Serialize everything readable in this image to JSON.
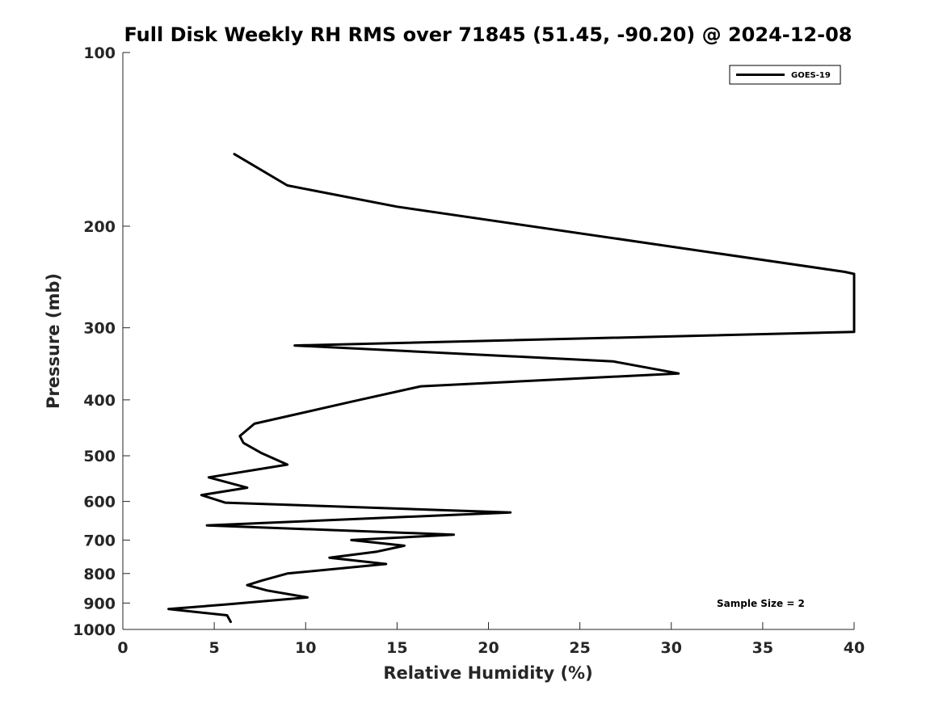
{
  "chart_data": {
    "type": "line",
    "title": "Full Disk Weekly RH RMS over 71845 (51.45, -90.20) @ 2024-12-08",
    "xlabel": "Relative Humidity (%)",
    "ylabel": "Pressure (mb)",
    "xlim": [
      0,
      40
    ],
    "ylim": [
      100,
      1000
    ],
    "yscale": "log",
    "yreversed": true,
    "xticks": [
      0,
      5,
      10,
      15,
      20,
      25,
      30,
      35,
      40
    ],
    "yticks": [
      100,
      200,
      300,
      400,
      500,
      600,
      700,
      800,
      900,
      1000
    ],
    "legend_position": "top-right",
    "annotation": "Sample Size = 2",
    "series": [
      {
        "name": "GOES-19",
        "color": "#000000",
        "points": [
          [
            6.1,
            150
          ],
          [
            9.0,
            170
          ],
          [
            15.0,
            185
          ],
          [
            39.5,
            240
          ],
          [
            40.0,
            242
          ],
          [
            40.0,
            305
          ],
          [
            9.4,
            322
          ],
          [
            26.8,
            343
          ],
          [
            30.4,
            360
          ],
          [
            16.3,
            379
          ],
          [
            12.5,
            403
          ],
          [
            7.2,
            440
          ],
          [
            6.4,
            462
          ],
          [
            6.6,
            475
          ],
          [
            7.6,
            495
          ],
          [
            9.0,
            518
          ],
          [
            4.7,
            545
          ],
          [
            6.8,
            568
          ],
          [
            4.3,
            585
          ],
          [
            5.6,
            603
          ],
          [
            21.2,
            627
          ],
          [
            4.6,
            660
          ],
          [
            18.1,
            685
          ],
          [
            12.5,
            700
          ],
          [
            15.4,
            716
          ],
          [
            13.9,
            733
          ],
          [
            11.3,
            751
          ],
          [
            14.4,
            770
          ],
          [
            9.0,
            800
          ],
          [
            7.6,
            823
          ],
          [
            6.8,
            838
          ],
          [
            7.9,
            856
          ],
          [
            10.1,
            880
          ],
          [
            5.7,
            905
          ],
          [
            2.5,
            922
          ],
          [
            5.7,
            945
          ],
          [
            5.9,
            970
          ]
        ]
      }
    ]
  }
}
